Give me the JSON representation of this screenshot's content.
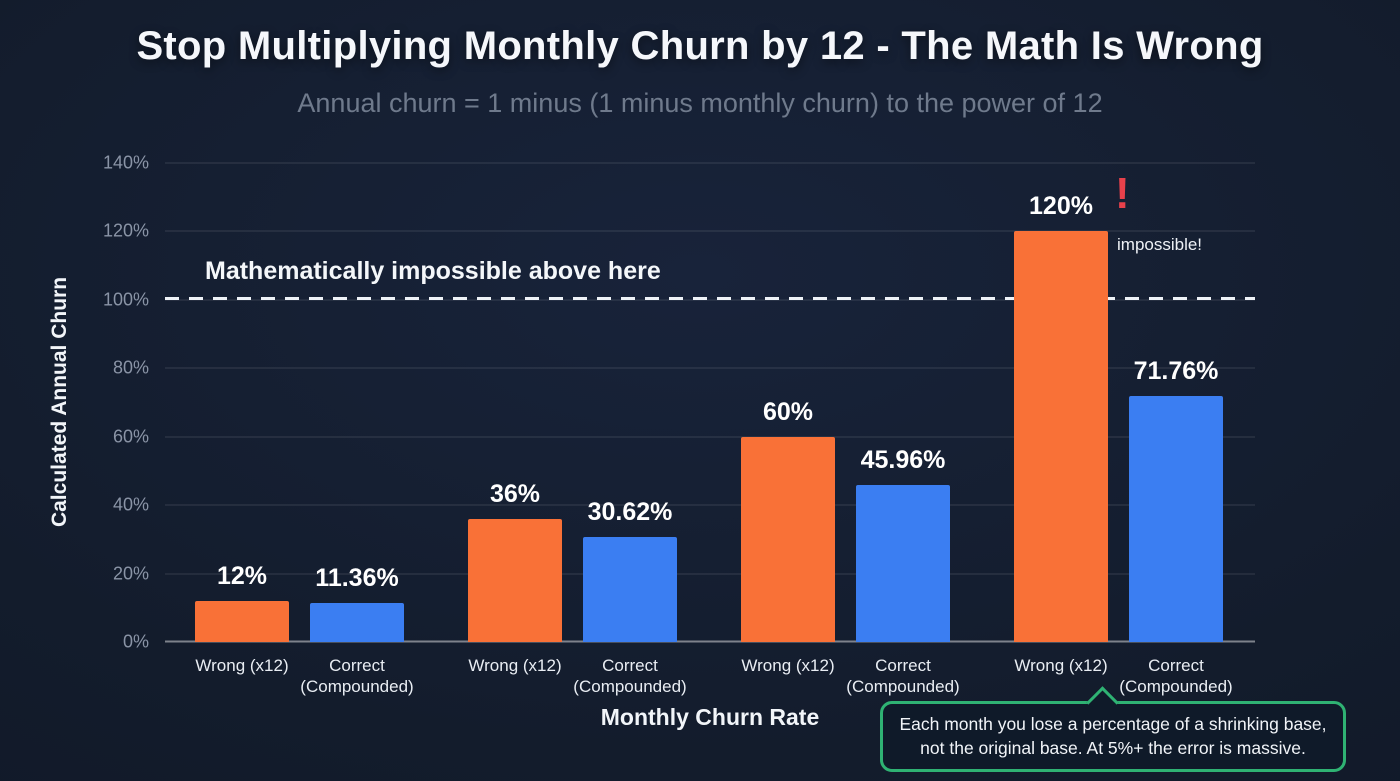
{
  "header": {
    "title": "Stop Multiplying Monthly Churn by 12 - The Math Is Wrong",
    "subtitle": "Annual churn = 1 minus (1 minus monthly churn) to the power of 12"
  },
  "chart_data": {
    "type": "bar",
    "title": "Stop Multiplying Monthly Churn by 12 - The Math Is Wrong",
    "subtitle": "Annual churn = 1 minus (1 minus monthly churn) to the power of 12",
    "xlabel": "Monthly Churn Rate",
    "ylabel": "Calculated Annual Churn",
    "ylim": [
      0,
      140
    ],
    "grid": true,
    "legend": "none",
    "yticks": [
      {
        "value": 0,
        "label": "0%"
      },
      {
        "value": 20,
        "label": "20%"
      },
      {
        "value": 40,
        "label": "40%"
      },
      {
        "value": 60,
        "label": "60%"
      },
      {
        "value": 80,
        "label": "80%"
      },
      {
        "value": 100,
        "label": "100%"
      },
      {
        "value": 120,
        "label": "120%"
      },
      {
        "value": 140,
        "label": "140%"
      }
    ],
    "series_names": [
      "Wrong (x12)",
      "Correct (Compounded)"
    ],
    "groups": [
      {
        "bars": [
          {
            "label": "Wrong (x12)",
            "value": 12,
            "display": "12%",
            "series": "wrong"
          },
          {
            "label": "Correct (Compounded)",
            "value": 11.36,
            "display": "11.36%",
            "series": "correct"
          }
        ]
      },
      {
        "bars": [
          {
            "label": "Wrong (x12)",
            "value": 36,
            "display": "36%",
            "series": "wrong"
          },
          {
            "label": "Correct (Compounded)",
            "value": 30.62,
            "display": "30.62%",
            "series": "correct"
          }
        ]
      },
      {
        "bars": [
          {
            "label": "Wrong (x12)",
            "value": 60,
            "display": "60%",
            "series": "wrong"
          },
          {
            "label": "Correct (Compounded)",
            "value": 45.96,
            "display": "45.96%",
            "series": "correct"
          }
        ]
      },
      {
        "bars": [
          {
            "label": "Wrong (x12)",
            "value": 120,
            "display": "120%",
            "series": "wrong"
          },
          {
            "label": "Correct (Compounded)",
            "value": 71.76,
            "display": "71.76%",
            "series": "correct"
          }
        ]
      }
    ],
    "colors": {
      "wrong": "#f97137",
      "correct": "#3b7ef2",
      "background": "#131c2c",
      "impossible_red": "#e8414b",
      "callout_green": "#2fb273"
    },
    "threshold_line": {
      "value": 100,
      "label": "Mathematically impossible above here"
    },
    "impossible_marker": {
      "exclamation": "!",
      "note": "impossible!"
    }
  },
  "callout": {
    "line1": "Each month you lose a percentage of a shrinking base,",
    "line2": "not the original base. At 5%+ the error is massive."
  }
}
